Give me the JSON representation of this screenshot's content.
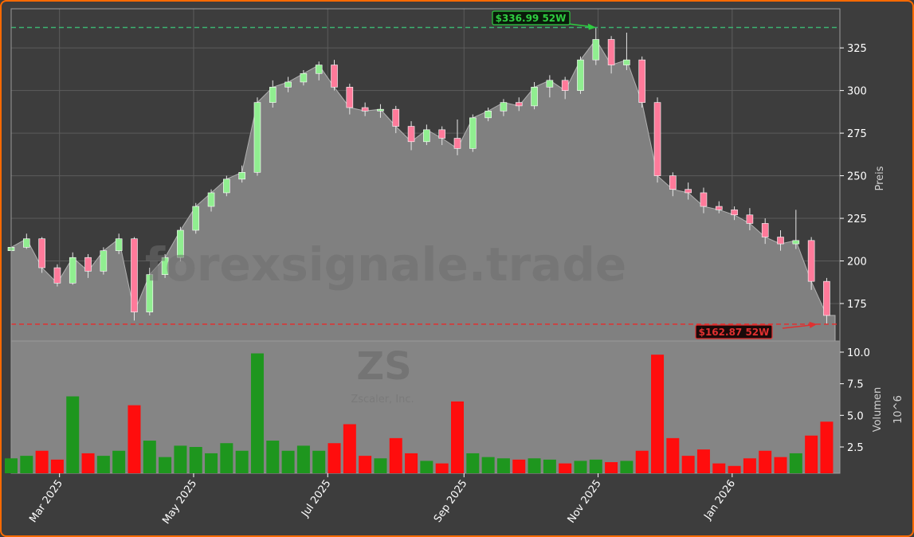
{
  "watermark": {
    "site": "forexsignale.trade",
    "ticker": "ZS",
    "company": "Zscaler, Inc."
  },
  "colors": {
    "up_candle": "#90ee90",
    "down_candle": "#ff7a9a",
    "up_volume": "#1e961e",
    "down_volume": "#ff0d0d",
    "high_line": "#3cb371",
    "low_line": "#e03030",
    "area": "#808080",
    "background": "#3d3d3d",
    "frame": "#ff6a00"
  },
  "chart_data": [
    {
      "type": "candlestick",
      "ylabel": "Preis",
      "ylim": [
        153,
        348
      ],
      "yticks": [
        175,
        200,
        225,
        250,
        275,
        300,
        325
      ],
      "grid": true,
      "xticks": [
        {
          "date": "2025-03-01",
          "label": "Mar 2025"
        },
        {
          "date": "2025-05-01",
          "label": "May 2025"
        },
        {
          "date": "2025-07-01",
          "label": "Jul 2025"
        },
        {
          "date": "2025-09-01",
          "label": "Sep 2025"
        },
        {
          "date": "2025-11-01",
          "label": "Nov 2025"
        },
        {
          "date": "2026-01-01",
          "label": "Jan 2026"
        }
      ],
      "xlim": [
        "2025-02-07",
        "2026-02-19"
      ],
      "high_52w": {
        "value": 336.99,
        "label": "$336.99 52W",
        "date": "2025-10-31"
      },
      "low_52w": {
        "value": 162.87,
        "label": "$162.87 52W",
        "date": "2026-02-13"
      },
      "columns": [
        "date",
        "open",
        "high",
        "low",
        "close",
        "volume"
      ],
      "rows": [
        [
          "2025-02-07",
          206,
          212,
          204,
          208,
          1.6
        ],
        [
          "2025-02-14",
          208,
          216,
          207,
          213,
          1.8
        ],
        [
          "2025-02-21",
          213,
          214,
          193,
          196,
          2.2
        ],
        [
          "2025-02-28",
          196,
          198,
          185,
          187,
          1.5
        ],
        [
          "2025-03-07",
          187,
          205,
          186,
          202,
          6.5
        ],
        [
          "2025-03-14",
          202,
          204,
          190,
          194,
          2.0
        ],
        [
          "2025-03-21",
          194,
          208,
          192,
          206,
          1.8
        ],
        [
          "2025-03-28",
          206,
          216,
          204,
          213,
          2.2
        ],
        [
          "2025-04-04",
          213,
          214,
          165,
          170,
          5.8
        ],
        [
          "2025-04-11",
          170,
          196,
          168,
          192,
          3.0
        ],
        [
          "2025-04-18",
          192,
          204,
          190,
          202,
          1.7
        ],
        [
          "2025-04-25",
          202,
          220,
          200,
          218,
          2.6
        ],
        [
          "2025-05-02",
          218,
          234,
          216,
          232,
          2.5
        ],
        [
          "2025-05-09",
          232,
          242,
          229,
          240,
          2.0
        ],
        [
          "2025-05-16",
          240,
          250,
          238,
          248,
          2.8
        ],
        [
          "2025-05-23",
          248,
          256,
          246,
          252,
          2.2
        ],
        [
          "2025-05-30",
          252,
          296,
          250,
          293,
          9.9
        ],
        [
          "2025-06-06",
          293,
          306,
          290,
          302,
          3.0
        ],
        [
          "2025-06-13",
          302,
          308,
          299,
          305,
          2.2
        ],
        [
          "2025-06-20",
          305,
          312,
          303,
          310,
          2.6
        ],
        [
          "2025-06-27",
          310,
          317,
          306,
          315,
          2.2
        ],
        [
          "2025-07-04",
          315,
          318,
          300,
          302,
          2.8
        ],
        [
          "2025-07-11",
          302,
          304,
          286,
          290,
          4.3
        ],
        [
          "2025-07-18",
          290,
          293,
          285,
          288,
          1.8
        ],
        [
          "2025-07-25",
          288,
          292,
          284,
          289,
          1.6
        ],
        [
          "2025-08-01",
          289,
          291,
          275,
          279,
          3.2
        ],
        [
          "2025-08-08",
          279,
          282,
          265,
          270,
          2.0
        ],
        [
          "2025-08-15",
          270,
          280,
          268,
          277,
          1.4
        ],
        [
          "2025-08-22",
          277,
          279,
          268,
          272,
          1.2
        ],
        [
          "2025-08-29",
          272,
          283,
          262,
          266,
          6.1
        ],
        [
          "2025-09-05",
          266,
          286,
          264,
          284,
          2.0
        ],
        [
          "2025-09-12",
          284,
          290,
          282,
          288,
          1.7
        ],
        [
          "2025-09-19",
          288,
          295,
          285,
          293,
          1.6
        ],
        [
          "2025-09-26",
          293,
          296,
          288,
          291,
          1.5
        ],
        [
          "2025-10-03",
          291,
          305,
          289,
          302,
          1.6
        ],
        [
          "2025-10-10",
          302,
          309,
          296,
          306,
          1.5
        ],
        [
          "2025-10-17",
          306,
          308,
          295,
          300,
          1.2
        ],
        [
          "2025-10-24",
          300,
          320,
          298,
          318,
          1.4
        ],
        [
          "2025-10-31",
          318,
          337,
          315,
          330,
          1.5
        ],
        [
          "2025-11-07",
          330,
          332,
          310,
          315,
          1.3
        ],
        [
          "2025-11-14",
          315,
          334,
          312,
          318,
          1.4
        ],
        [
          "2025-11-21",
          318,
          320,
          290,
          293,
          2.2
        ],
        [
          "2025-11-28",
          293,
          296,
          246,
          250,
          9.8
        ],
        [
          "2025-12-05",
          250,
          252,
          238,
          242,
          3.2
        ],
        [
          "2025-12-12",
          242,
          246,
          236,
          240,
          1.8
        ],
        [
          "2025-12-19",
          240,
          243,
          228,
          232,
          2.3
        ],
        [
          "2025-12-26",
          232,
          235,
          228,
          230,
          1.2
        ],
        [
          "2026-01-02",
          230,
          232,
          224,
          227,
          1.0
        ],
        [
          "2026-01-09",
          227,
          231,
          218,
          222,
          1.6
        ],
        [
          "2026-01-16",
          222,
          225,
          210,
          214,
          2.2
        ],
        [
          "2026-01-23",
          214,
          218,
          206,
          210,
          1.7
        ],
        [
          "2026-01-30",
          210,
          230,
          207,
          212,
          2.0
        ],
        [
          "2026-02-06",
          212,
          214,
          183,
          188,
          3.4
        ],
        [
          "2026-02-13",
          188,
          190,
          163,
          168,
          4.5
        ]
      ]
    },
    {
      "type": "bar",
      "ylabel": "Volumen",
      "yunit": "10^6",
      "ylim": [
        0.42,
        10.88
      ],
      "yticks": [
        2.5,
        5.0,
        7.5,
        10.0
      ],
      "grid": false
    }
  ]
}
